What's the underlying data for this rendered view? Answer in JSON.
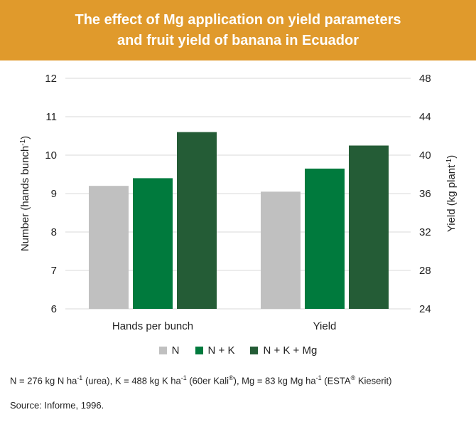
{
  "header": {
    "title_line1": "The effect of Mg application on yield parameters",
    "title_line2": "and fruit yield of banana in Ecuador"
  },
  "chart_data": {
    "type": "bar",
    "categories": [
      "Hands per bunch",
      "Yield"
    ],
    "series": [
      {
        "name": "N",
        "color": "#c0c0c0",
        "values": [
          9.2,
          36.2
        ]
      },
      {
        "name": "N + K",
        "color": "#007a3d",
        "values": [
          9.4,
          38.6
        ]
      },
      {
        "name": "N + K + Mg",
        "color": "#245c36",
        "values": [
          10.6,
          41.0
        ]
      }
    ],
    "left_axis": {
      "label": "Number (hands bunch",
      "label_sup": "-1",
      "label_end": ")",
      "ylim": [
        6,
        12
      ],
      "ticks": [
        "12",
        "11",
        "10",
        "9",
        "8",
        "7",
        "6"
      ],
      "applies_to": "Hands per bunch"
    },
    "right_axis": {
      "label": "Yield (kg plant",
      "label_sup": "-1",
      "label_end": ")",
      "ylim": [
        24,
        48
      ],
      "ticks": [
        "48",
        "44",
        "40",
        "36",
        "32",
        "28",
        "24"
      ],
      "applies_to": "Yield"
    },
    "grid": true,
    "legend_position": "bottom"
  },
  "footnote": {
    "p1": "N = 276 kg N ha",
    "s1": "-1",
    "p2": " (urea), K = 488 kg K ha",
    "s2": "-1",
    "p3": " (60er Kali",
    "s3": "®",
    "p4": "), Mg = 83 kg Mg ha",
    "s4": "-1",
    "p5": " (ESTA",
    "s5": "®",
    "p6": " Kieserit)"
  },
  "source": "Source: Informe, 1996."
}
